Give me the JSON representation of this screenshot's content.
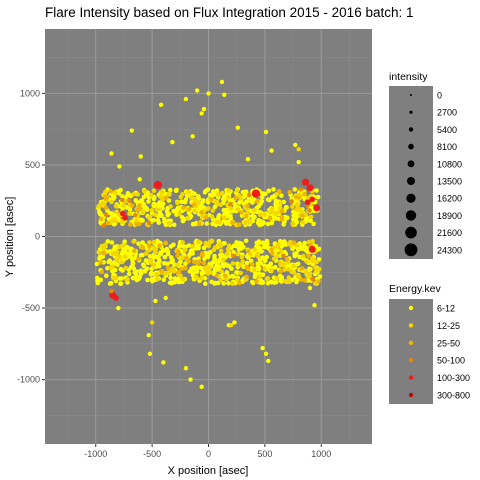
{
  "chart_data": {
    "type": "scatter",
    "title": "Flare Intensity based on Flux Integration 2015 - 2016  batch:   1",
    "xlabel": "X position [asec]",
    "ylabel": "Y position [asec]",
    "xlim": [
      -1450,
      1450
    ],
    "ylim": [
      -1450,
      1450
    ],
    "x_ticks": [
      -1000,
      -500,
      0,
      500,
      1000
    ],
    "y_ticks": [
      1000,
      500,
      0,
      -500,
      -1000
    ],
    "grid": true,
    "panel_color": "#7f7f7f",
    "size_legend": {
      "title": "intensity",
      "levels": [
        0,
        2700,
        5400,
        8100,
        10800,
        13500,
        16200,
        18900,
        21600,
        24300
      ]
    },
    "color_legend": {
      "title": "Energy.kev",
      "classes": [
        {
          "label": "6-12",
          "color": "#ffff00"
        },
        {
          "label": "12-25",
          "color": "#f2d700"
        },
        {
          "label": "25-50",
          "color": "#f0b400"
        },
        {
          "label": "50-100",
          "color": "#e58a00"
        },
        {
          "label": "100-300",
          "color": "#ee1c1c"
        },
        {
          "label": "300-800",
          "color": "#b01010"
        }
      ]
    },
    "bands": [
      {
        "class": "6-12",
        "count": 480,
        "x_range": [
          -980,
          980
        ],
        "y_range": [
          80,
          330
        ]
      },
      {
        "class": "12-25",
        "count": 120,
        "x_range": [
          -980,
          980
        ],
        "y_range": [
          80,
          330
        ]
      },
      {
        "class": "25-50",
        "count": 40,
        "x_range": [
          -980,
          980
        ],
        "y_range": [
          80,
          330
        ]
      },
      {
        "class": "6-12",
        "count": 520,
        "x_range": [
          -990,
          990
        ],
        "y_range": [
          -330,
          -30
        ]
      },
      {
        "class": "12-25",
        "count": 140,
        "x_range": [
          -990,
          990
        ],
        "y_range": [
          -330,
          -30
        ]
      },
      {
        "class": "25-50",
        "count": 45,
        "x_range": [
          -990,
          990
        ],
        "y_range": [
          -330,
          -30
        ]
      },
      {
        "class": "50-100",
        "count": 12,
        "x_range": [
          -980,
          980
        ],
        "y_range": [
          -300,
          300
        ]
      }
    ],
    "points": [
      {
        "x": -790,
        "y": 490,
        "class": "6-12",
        "intensity": 0
      },
      {
        "x": -610,
        "y": 400,
        "class": "6-12",
        "intensity": 0
      },
      {
        "x": -860,
        "y": 580,
        "class": "6-12",
        "intensity": 0
      },
      {
        "x": -420,
        "y": 920,
        "class": "6-12",
        "intensity": 0
      },
      {
        "x": -200,
        "y": 960,
        "class": "6-12",
        "intensity": 0
      },
      {
        "x": -100,
        "y": 1020,
        "class": "6-12",
        "intensity": 0
      },
      {
        "x": 0,
        "y": 1000,
        "class": "6-12",
        "intensity": 0
      },
      {
        "x": 120,
        "y": 1080,
        "class": "6-12",
        "intensity": 0
      },
      {
        "x": 140,
        "y": 990,
        "class": "6-12",
        "intensity": 0
      },
      {
        "x": -40,
        "y": 890,
        "class": "6-12",
        "intensity": 0
      },
      {
        "x": 260,
        "y": 760,
        "class": "6-12",
        "intensity": 0
      },
      {
        "x": 510,
        "y": 730,
        "class": "6-12",
        "intensity": 0
      },
      {
        "x": 560,
        "y": 600,
        "class": "6-12",
        "intensity": 0
      },
      {
        "x": 800,
        "y": 520,
        "class": "6-12",
        "intensity": 0
      },
      {
        "x": -680,
        "y": 740,
        "class": "6-12",
        "intensity": 0
      },
      {
        "x": -140,
        "y": 700,
        "class": "6-12",
        "intensity": 0
      },
      {
        "x": -320,
        "y": 660,
        "class": "6-12",
        "intensity": 0
      },
      {
        "x": -60,
        "y": 860,
        "class": "6-12",
        "intensity": 0
      },
      {
        "x": -800,
        "y": -500,
        "class": "6-12",
        "intensity": 0
      },
      {
        "x": -470,
        "y": -450,
        "class": "6-12",
        "intensity": 0
      },
      {
        "x": -530,
        "y": -690,
        "class": "6-12",
        "intensity": 0
      },
      {
        "x": -520,
        "y": -820,
        "class": "6-12",
        "intensity": 0
      },
      {
        "x": -400,
        "y": -880,
        "class": "6-12",
        "intensity": 0
      },
      {
        "x": -200,
        "y": -920,
        "class": "6-12",
        "intensity": 0
      },
      {
        "x": -160,
        "y": -1000,
        "class": "6-12",
        "intensity": 0
      },
      {
        "x": -60,
        "y": -1050,
        "class": "6-12",
        "intensity": 0
      },
      {
        "x": 480,
        "y": -780,
        "class": "6-12",
        "intensity": 0
      },
      {
        "x": 510,
        "y": -820,
        "class": "6-12",
        "intensity": 0
      },
      {
        "x": 530,
        "y": -870,
        "class": "6-12",
        "intensity": 0
      },
      {
        "x": 230,
        "y": -600,
        "class": "6-12",
        "intensity": 0
      },
      {
        "x": 180,
        "y": -620,
        "class": "6-12",
        "intensity": 0
      },
      {
        "x": 900,
        "y": -360,
        "class": "6-12",
        "intensity": 0
      },
      {
        "x": 940,
        "y": -480,
        "class": "6-12",
        "intensity": 0
      },
      {
        "x": -380,
        "y": -430,
        "class": "6-12",
        "intensity": 0
      },
      {
        "x": 770,
        "y": 640,
        "class": "6-12",
        "intensity": 0
      },
      {
        "x": -600,
        "y": 560,
        "class": "6-12",
        "intensity": 0
      },
      {
        "x": 350,
        "y": 540,
        "class": "6-12",
        "intensity": 0
      },
      {
        "x": -500,
        "y": -600,
        "class": "12-25",
        "intensity": 0
      },
      {
        "x": 200,
        "y": -620,
        "class": "12-25",
        "intensity": 0
      },
      {
        "x": 800,
        "y": 610,
        "class": "12-25",
        "intensity": 0
      },
      {
        "x": -450,
        "y": 360,
        "class": "100-300",
        "intensity": 8100
      },
      {
        "x": 420,
        "y": 300,
        "class": "100-300",
        "intensity": 8100
      },
      {
        "x": 860,
        "y": 380,
        "class": "100-300",
        "intensity": 5400
      },
      {
        "x": 900,
        "y": 340,
        "class": "100-300",
        "intensity": 5400
      },
      {
        "x": 920,
        "y": 260,
        "class": "100-300",
        "intensity": 2700
      },
      {
        "x": 960,
        "y": 200,
        "class": "100-300",
        "intensity": 5400
      },
      {
        "x": 880,
        "y": 240,
        "class": "100-300",
        "intensity": 2700
      },
      {
        "x": -760,
        "y": 160,
        "class": "100-300",
        "intensity": 2700
      },
      {
        "x": -740,
        "y": 130,
        "class": "100-300",
        "intensity": 2700
      },
      {
        "x": 920,
        "y": -90,
        "class": "100-300",
        "intensity": 5400
      },
      {
        "x": -850,
        "y": -410,
        "class": "100-300",
        "intensity": 5400
      },
      {
        "x": -820,
        "y": -430,
        "class": "100-300",
        "intensity": 2700
      },
      {
        "x": -860,
        "y": -380,
        "class": "50-100",
        "intensity": 0
      },
      {
        "x": 820,
        "y": 330,
        "class": "50-100",
        "intensity": 0
      },
      {
        "x": -650,
        "y": 150,
        "class": "50-100",
        "intensity": 0
      },
      {
        "x": 360,
        "y": 290,
        "class": "50-100",
        "intensity": 0
      }
    ]
  }
}
